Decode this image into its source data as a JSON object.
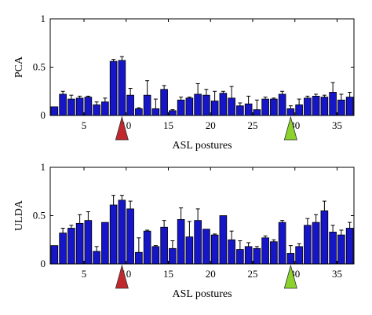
{
  "chart_data": [
    {
      "type": "bar",
      "ylabel": "PCA",
      "xlabel": "ASL postures",
      "xlim": [
        1,
        37
      ],
      "ylim": [
        0,
        1
      ],
      "x_ticks": [
        5,
        10,
        15,
        20,
        25,
        30,
        35
      ],
      "y_ticks": [
        0,
        0.5,
        1
      ],
      "y_tick_labels": [
        "0",
        "0.5",
        "1"
      ],
      "x": [
        1,
        2,
        3,
        4,
        5,
        6,
        7,
        8,
        9,
        10,
        11,
        12,
        13,
        14,
        15,
        16,
        17,
        18,
        19,
        20,
        21,
        22,
        23,
        24,
        25,
        26,
        27,
        28,
        29,
        30,
        31,
        32,
        33,
        34,
        35,
        36
      ],
      "values": [
        0.09,
        0.22,
        0.17,
        0.18,
        0.19,
        0.11,
        0.14,
        0.56,
        0.57,
        0.21,
        0.07,
        0.21,
        0.07,
        0.27,
        0.05,
        0.16,
        0.18,
        0.22,
        0.21,
        0.15,
        0.23,
        0.18,
        0.1,
        0.12,
        0.06,
        0.17,
        0.17,
        0.22,
        0.07,
        0.11,
        0.18,
        0.2,
        0.19,
        0.24,
        0.16,
        0.19
      ],
      "errors": [
        0.0,
        0.03,
        0.04,
        0.02,
        0.01,
        0.03,
        0.04,
        0.02,
        0.04,
        0.07,
        0.01,
        0.15,
        0.1,
        0.04,
        0.01,
        0.03,
        0.01,
        0.11,
        0.06,
        0.1,
        0.02,
        0.12,
        0.03,
        0.08,
        0.1,
        0.02,
        0.01,
        0.03,
        0.03,
        0.06,
        0.02,
        0.02,
        0.02,
        0.1,
        0.06,
        0.05
      ],
      "markers": [
        {
          "x": 9,
          "color": "#c1272d"
        },
        {
          "x": 29,
          "color": "#8cd22c"
        }
      ],
      "bar_color": "#1616c8"
    },
    {
      "type": "bar",
      "ylabel": "ULDA",
      "xlabel": "ASL postures",
      "xlim": [
        1,
        37
      ],
      "ylim": [
        0,
        1
      ],
      "x_ticks": [
        5,
        10,
        15,
        20,
        25,
        30,
        35
      ],
      "y_ticks": [
        0,
        0.5,
        1
      ],
      "y_tick_labels": [
        "0",
        "0.5",
        "1"
      ],
      "x": [
        1,
        2,
        3,
        4,
        5,
        6,
        7,
        8,
        9,
        10,
        11,
        12,
        13,
        14,
        15,
        16,
        17,
        18,
        19,
        20,
        21,
        22,
        23,
        24,
        25,
        26,
        27,
        28,
        29,
        30,
        31,
        32,
        33,
        34,
        35,
        36
      ],
      "values": [
        0.19,
        0.32,
        0.37,
        0.42,
        0.45,
        0.13,
        0.43,
        0.61,
        0.66,
        0.57,
        0.12,
        0.34,
        0.18,
        0.38,
        0.16,
        0.46,
        0.28,
        0.45,
        0.36,
        0.3,
        0.5,
        0.25,
        0.15,
        0.18,
        0.16,
        0.27,
        0.23,
        0.43,
        0.11,
        0.18,
        0.4,
        0.43,
        0.55,
        0.33,
        0.3,
        0.37
      ],
      "errors": [
        0.0,
        0.05,
        0.03,
        0.09,
        0.09,
        0.05,
        0.0,
        0.1,
        0.05,
        0.08,
        0.15,
        0.01,
        0.01,
        0.07,
        0.08,
        0.12,
        0.16,
        0.12,
        0.0,
        0.01,
        0.0,
        0.09,
        0.09,
        0.04,
        0.02,
        0.02,
        0.02,
        0.02,
        0.08,
        0.03,
        0.07,
        0.08,
        0.1,
        0.07,
        0.05,
        0.06
      ],
      "markers": [
        {
          "x": 9,
          "color": "#c1272d"
        },
        {
          "x": 29,
          "color": "#8cd22c"
        }
      ],
      "bar_color": "#1616c8"
    }
  ]
}
